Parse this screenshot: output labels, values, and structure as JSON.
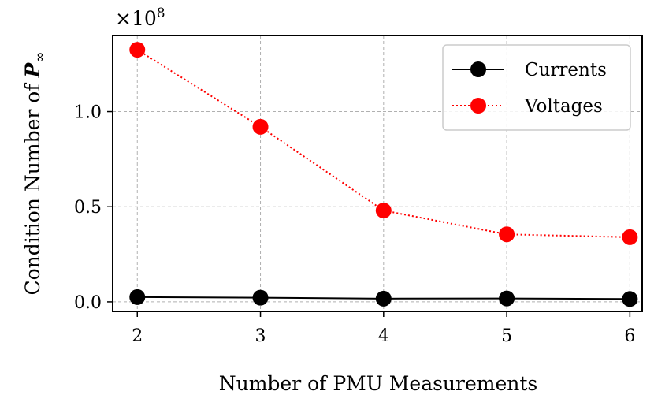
{
  "chart_data": {
    "type": "line",
    "x": [
      2,
      3,
      4,
      5,
      6
    ],
    "series": [
      {
        "name": "Currents",
        "values": [
          2500000,
          2200000,
          1700000,
          1800000,
          1500000
        ],
        "color": "#000000",
        "line_style": "solid",
        "marker": "circle"
      },
      {
        "name": "Voltages",
        "values": [
          132500000,
          92000000,
          48000000,
          35500000,
          34000000
        ],
        "color": "#ff0000",
        "line_style": "dotted",
        "marker": "circle"
      }
    ],
    "xlabel": "Number of PMU Measurements",
    "ylabel_prefix": "Condition Number of ",
    "ylabel_symbol": "P",
    "ylabel_subscript": "∞",
    "y_scale_label": "×10",
    "y_scale_exponent": "8",
    "x_ticks": [
      "2",
      "3",
      "4",
      "5",
      "6"
    ],
    "y_ticks": [
      0.0,
      0.5,
      1.0
    ],
    "y_tick_labels": [
      "0.0",
      "0.5",
      "1.0"
    ],
    "xlim": [
      1.8,
      6.1
    ],
    "ylim_scaled": [
      -0.05,
      1.4
    ],
    "scale_factor": 100000000,
    "grid": true,
    "legend_position": "upper right"
  }
}
